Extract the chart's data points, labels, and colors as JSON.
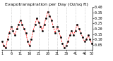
{
  "title": "Evapotranspiration per Day (Oz/sq ft)",
  "values": [
    0.08,
    0.04,
    0.02,
    0.1,
    0.16,
    0.22,
    0.18,
    0.14,
    0.2,
    0.24,
    0.28,
    0.24,
    0.2,
    0.16,
    0.08,
    0.04,
    0.1,
    0.18,
    0.24,
    0.3,
    0.26,
    0.22,
    0.18,
    0.24,
    0.3,
    0.36,
    0.32,
    0.28,
    0.22,
    0.16,
    0.22,
    0.18,
    0.12,
    0.06,
    0.02,
    0.04,
    0.08,
    0.14,
    0.18,
    0.14,
    0.18,
    0.24,
    0.2,
    0.16,
    0.12,
    0.08,
    0.1,
    0.14,
    0.1,
    0.06
  ],
  "line_color": "#ff0000",
  "marker_color": "#000000",
  "marker": "s",
  "linestyle": "--",
  "background_color": "#ffffff",
  "grid_color": "#aaaaaa",
  "title_fontsize": 4.5,
  "tick_fontsize": 3.5,
  "ylim": [
    0.0,
    0.4
  ],
  "yticks": [
    0.05,
    0.1,
    0.15,
    0.2,
    0.25,
    0.3,
    0.35,
    0.4
  ],
  "ytick_labels": [
    "0.05",
    "0.10",
    "0.15",
    "0.20",
    "0.25",
    "0.30",
    "0.35",
    "0.40"
  ],
  "grid_positions": [
    5,
    10,
    15,
    20,
    25,
    30,
    35,
    40,
    45
  ],
  "xlabel_indices": [
    0,
    5,
    10,
    15,
    20,
    25,
    30,
    35,
    40,
    45,
    49
  ],
  "xlabel_labels": [
    "1",
    "6",
    "11",
    "16",
    "21",
    "26",
    "31",
    "36",
    "41",
    "46",
    "50"
  ]
}
